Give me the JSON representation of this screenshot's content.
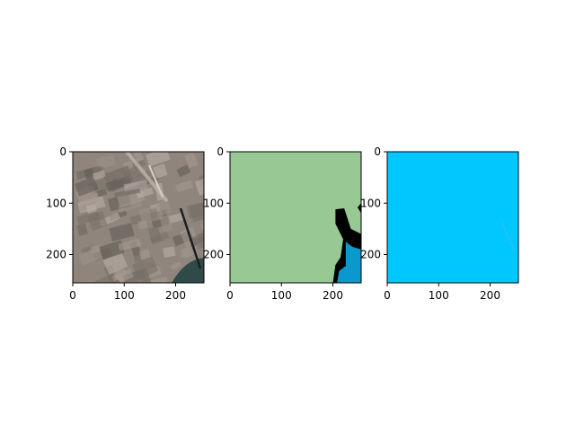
{
  "chart_data": [
    {
      "type": "image",
      "panel": "input-image",
      "xlim": [
        0,
        255
      ],
      "ylim": [
        255,
        0
      ],
      "xticks": [
        0,
        100,
        200
      ],
      "yticks": [
        0,
        100,
        200
      ],
      "xtick_labels": [
        "0",
        "100",
        "200"
      ],
      "ytick_labels": [
        "0",
        "100",
        "200"
      ],
      "grid": false,
      "colors": {
        "base": "#8f857c",
        "dark_field": "#5f5a52",
        "light_field": "#bfb3ad",
        "water": "#2f4a48",
        "road": "#1c1e20"
      }
    },
    {
      "type": "image",
      "panel": "segmentation-mask",
      "xlim": [
        0,
        255
      ],
      "ylim": [
        255,
        0
      ],
      "xticks": [
        0,
        100,
        200
      ],
      "yticks": [
        0,
        100,
        200
      ],
      "xtick_labels": [
        "0",
        "100",
        "200"
      ],
      "ytick_labels": [
        "0",
        "100",
        "200"
      ],
      "grid": false,
      "colors": {
        "land": "#98c995",
        "nodata": "#000000",
        "water": "#0b98cf"
      }
    },
    {
      "type": "image",
      "panel": "prediction-mask",
      "xlim": [
        0,
        255
      ],
      "ylim": [
        255,
        0
      ],
      "xticks": [
        0,
        100,
        200
      ],
      "yticks": [
        0,
        100,
        200
      ],
      "xtick_labels": [
        "0",
        "100",
        "200"
      ],
      "ytick_labels": [
        "0",
        "100",
        "200"
      ],
      "grid": false,
      "colors": {
        "background": "#00c8ff",
        "trace": "#3ac0e8"
      }
    }
  ]
}
